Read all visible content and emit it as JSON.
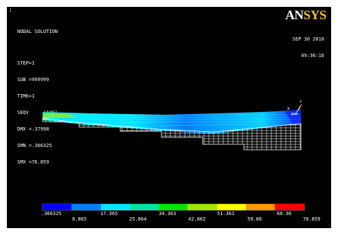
{
  "window_number": "1",
  "info": {
    "title": "NODAL SOLUTION",
    "step": "STEP=1",
    "sub": "SUB =999999",
    "time": "TIME=1",
    "seqv": "SEQV     (AVG)",
    "dmx": "DMX =.37998",
    "smn": "SMN =.366325",
    "smx": "SMX =76.859"
  },
  "logo": {
    "part1": "AN",
    "part2": "SYS",
    "text_color": "#ffffff",
    "accent_color": "#f2c21b"
  },
  "datetime": {
    "date": "SEP 30 2010",
    "time": "09:36:16"
  },
  "triad": {
    "y_label": "Y",
    "x_label": "X",
    "z_label": "Z",
    "w_label": "MX"
  },
  "legend": {
    "colors": [
      "#0000ff",
      "#0080ff",
      "#00e6ff",
      "#00e6a0",
      "#00e600",
      "#a0e600",
      "#ffff00",
      "#ff9900",
      "#ff0000"
    ],
    "top_labels": [
      ".366325",
      "17.365",
      "34.363",
      "51.361",
      "68.36"
    ],
    "bottom_labels": [
      "8.865",
      "25.864",
      "42.862",
      "59.86",
      "76.859"
    ]
  }
}
